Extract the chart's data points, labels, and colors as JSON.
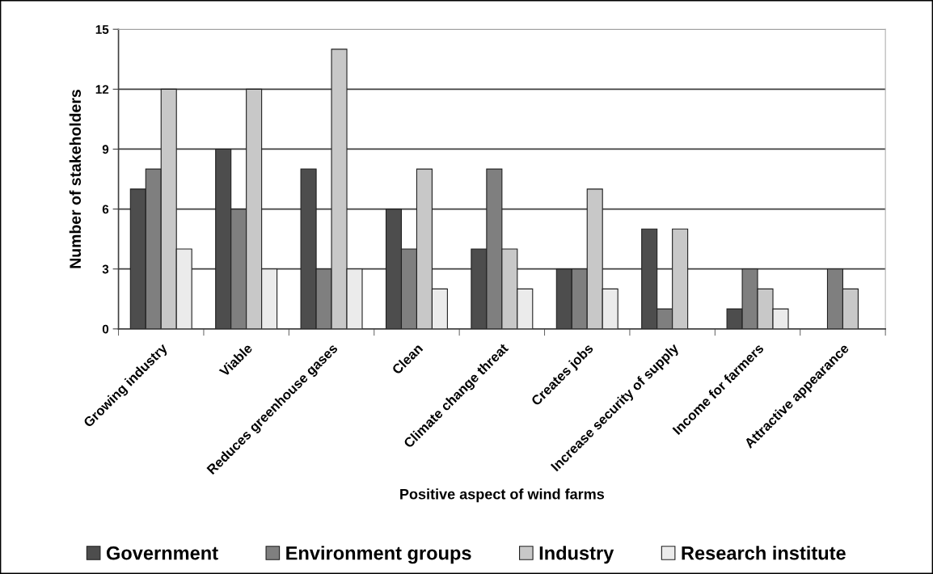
{
  "chart_data": {
    "type": "bar",
    "xlabel": "Positive aspect of wind farms",
    "ylabel": "Number of stakeholders",
    "categories": [
      "Growing industry",
      "Viable",
      "Reduces greenhouse gases",
      "Clean",
      "Climate change threat",
      "Creates jobs",
      "Increase security of supply",
      "Income for farmers",
      "Attractive appearance"
    ],
    "series": [
      {
        "name": "Government",
        "color": "#4d4d4d",
        "values": [
          7,
          9,
          8,
          6,
          4,
          3,
          5,
          1,
          null
        ]
      },
      {
        "name": "Environment groups",
        "color": "#7f7f7f",
        "values": [
          8,
          6,
          3,
          4,
          8,
          3,
          1,
          3,
          3
        ]
      },
      {
        "name": "Industry",
        "color": "#c8c8c8",
        "values": [
          12,
          12,
          14,
          8,
          4,
          7,
          5,
          2,
          2
        ]
      },
      {
        "name": "Research institute",
        "color": "#ebebeb",
        "values": [
          4,
          3,
          3,
          2,
          2,
          2,
          null,
          1,
          null
        ]
      }
    ],
    "ylim": [
      0,
      15
    ],
    "yticks": [
      0,
      3,
      6,
      9,
      12,
      15
    ],
    "grid": "y",
    "legend": "bottom"
  }
}
